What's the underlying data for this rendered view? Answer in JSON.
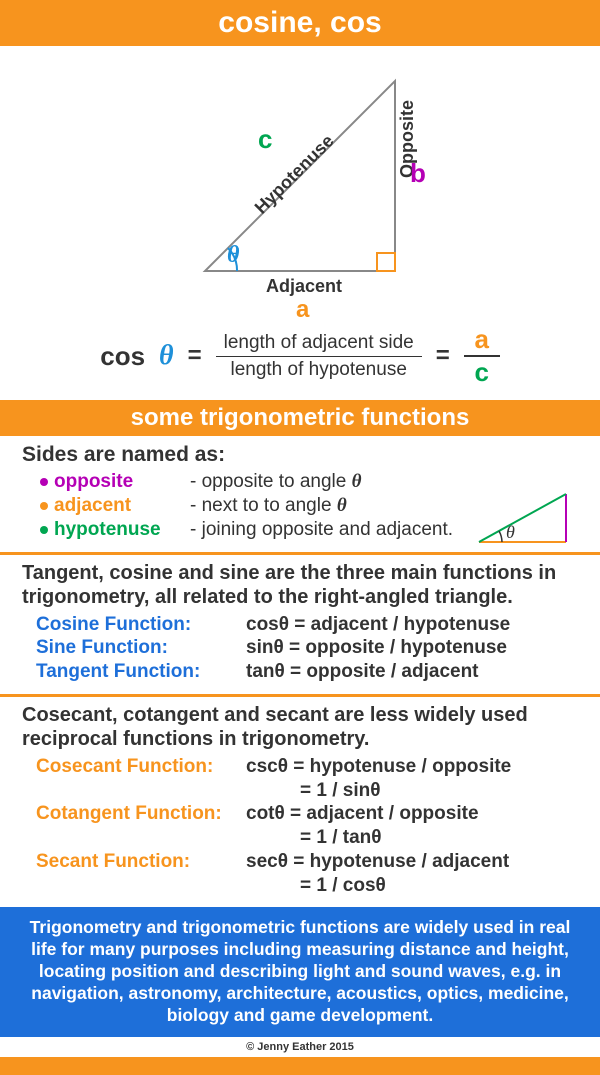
{
  "colors": {
    "orange": "#f7941e",
    "blue_text": "#1e6fd9",
    "green": "#00a651",
    "magenta": "#b500b5",
    "theta_blue": "#1e90d9",
    "text_dark": "#333333",
    "white": "#ffffff",
    "blue_box_bg": "#1e6fd9",
    "triangle_gray": "#888888"
  },
  "header": {
    "title": "cosine, cos",
    "subtitle": "some trigonometric functions"
  },
  "triangle": {
    "hypotenuse_label": "Hypotenuse",
    "opposite_label": "Opposite",
    "adjacent_label": "Adjacent",
    "c_label": "c",
    "b_label": "b",
    "a_label": "a",
    "theta": "θ"
  },
  "formula": {
    "cos": "cos",
    "theta": "θ",
    "eq": "=",
    "num_text": "length of adjacent side",
    "den_text": "length of hypotenuse",
    "a": "a",
    "c": "c"
  },
  "sides": {
    "heading": "Sides are named as:",
    "rows": [
      {
        "name": "opposite",
        "color": "#b500b5",
        "desc": "- opposite to angle ",
        "has_theta": true
      },
      {
        "name": "adjacent",
        "color": "#f7941e",
        "desc": "- next to to angle ",
        "has_theta": true
      },
      {
        "name": "hypotenuse",
        "color": "#00a651",
        "desc": "- joining opposite and adjacent.",
        "has_theta": false
      }
    ],
    "theta": "θ"
  },
  "main_funcs": {
    "intro": "Tangent, cosine and sine are the three main functions in trigonometry, all related to the right-angled triangle.",
    "color": "#1e6fd9",
    "rows": [
      {
        "label": "Cosine Function:",
        "def": "cosθ = adjacent / hypotenuse"
      },
      {
        "label": "Sine Function:",
        "def": "sinθ  = opposite / hypotenuse"
      },
      {
        "label": "Tangent Function:",
        "def": "tanθ  = opposite / adjacent"
      }
    ]
  },
  "recip_funcs": {
    "intro": "Cosecant, cotangent and secant are less widely used reciprocal functions in trigonometry.",
    "color": "#f7941e",
    "rows": [
      {
        "label": "Cosecant Function:",
        "def1": "cscθ = hypotenuse / opposite",
        "def2": "= 1 / sinθ"
      },
      {
        "label": "Cotangent Function:",
        "def1": "cotθ = adjacent / opposite",
        "def2": "= 1 / tanθ"
      },
      {
        "label": "Secant Function:",
        "def1": "secθ = hypotenuse / adjacent",
        "def2": "= 1 / cosθ"
      }
    ]
  },
  "blue_box": {
    "text": "Trigonometry and trigonometric functions are widely used in real life for many purposes including measuring distance and height, locating position and describing light and sound waves, e.g. in navigation, astronomy, architecture, acoustics, optics, medicine, biology and game development."
  },
  "copyright": "© Jenny Eather 2015"
}
